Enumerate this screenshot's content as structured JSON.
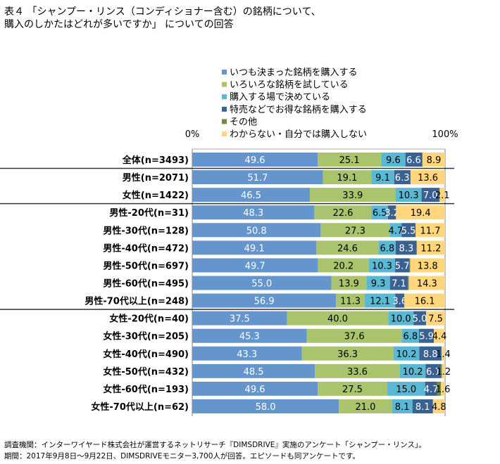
{
  "chart_data": {
    "type": "bar",
    "orientation": "horizontal-stacked-100",
    "title_line1": "表４ 「シャンプー・リンス（コンディショナー含む）の銘柄について、",
    "title_line2": "購入のしかたはどれが多いですか」 についての回答",
    "axis_min_label": "0%",
    "axis_max_label": "100%",
    "xlim": [
      0,
      100
    ],
    "legend_position": "top",
    "series": [
      {
        "name": "いつも決まった銘柄を購入する",
        "color": "#6495cd",
        "text": "#ffffff",
        "values": [
          49.6,
          51.7,
          46.5,
          48.3,
          50.8,
          49.1,
          49.7,
          55.0,
          56.9,
          37.5,
          45.3,
          43.3,
          48.5,
          49.6,
          58.0
        ],
        "labels": [
          "49.6",
          "51.7",
          "46.5",
          "48.3",
          "50.8",
          "49.1",
          "49.7",
          "55.0",
          "56.9",
          "37.5",
          "45.3",
          "43.3",
          "48.5",
          "49.6",
          "58.0"
        ]
      },
      {
        "name": "いろいろな銘柄を試している",
        "color": "#a9c46c",
        "text": "#000000",
        "values": [
          25.1,
          19.1,
          33.9,
          22.6,
          27.3,
          24.6,
          20.2,
          13.9,
          11.3,
          40.0,
          37.6,
          36.3,
          33.6,
          27.5,
          21.0
        ],
        "labels": [
          "25.1",
          "19.1",
          "33.9",
          "22.6",
          "27.3",
          "24.6",
          "20.2",
          "13.9",
          "11.3",
          "40.0",
          "37.6",
          "36.3",
          "33.6",
          "27.5",
          "21.0"
        ]
      },
      {
        "name": "購入する場で決めている",
        "color": "#5ab8d4",
        "text": "#000000",
        "values": [
          9.6,
          9.1,
          10.3,
          6.5,
          4.7,
          6.8,
          10.3,
          9.3,
          12.1,
          10.0,
          6.8,
          10.2,
          10.2,
          15.0,
          8.1
        ],
        "labels": [
          "9.6",
          "9.1",
          "10.3",
          "6.5",
          "4.7",
          "6.8",
          "10.3",
          "9.3",
          "12.1",
          "10.0",
          "6.8",
          "10.2",
          "10.2",
          "15.0",
          "8.1"
        ]
      },
      {
        "name": "特売などでお得な銘柄を購入する",
        "color": "#3b6190",
        "text": "#ffffff",
        "values": [
          6.6,
          6.3,
          7.0,
          3.2,
          5.5,
          8.3,
          5.7,
          7.1,
          3.6,
          5.0,
          5.9,
          8.8,
          6.1,
          4.7,
          8.1
        ],
        "labels": [
          "6.6",
          "6.3",
          "7.0",
          "3.2",
          "5.5",
          "8.3",
          "5.7",
          "7.1",
          "3.6",
          "5.0",
          "5.9",
          "8.8",
          "6.1",
          "4.7",
          "8.1"
        ]
      },
      {
        "name": "その他",
        "color": "#6e8c3c",
        "text": "#ffffff",
        "values": [
          0.2,
          0.2,
          0.2,
          0,
          0,
          0,
          0.3,
          0.4,
          0,
          0,
          0,
          0,
          0.4,
          1.6,
          0
        ],
        "labels": []
      },
      {
        "name": "わからない・自分では購入しない",
        "color": "#ffd67c",
        "text": "#000000",
        "values": [
          8.9,
          13.6,
          2.1,
          19.4,
          11.7,
          11.2,
          13.8,
          14.3,
          16.1,
          7.5,
          4.4,
          1.4,
          1.2,
          1.6,
          4.8
        ],
        "labels": [
          "8.9",
          "13.6",
          "2.1",
          "19.4",
          "11.7",
          "11.2",
          "13.8",
          "14.3",
          "16.1",
          "7.5",
          "4.4",
          "1.4",
          "1.2",
          "1.6",
          "4.8"
        ]
      }
    ],
    "categories": [
      "全体(n=3493)",
      "男性(n=2071)",
      "女性(n=1422)",
      "男性-20代(n=31)",
      "男性-30代(n=128)",
      "男性-40代(n=472)",
      "男性-50代(n=697)",
      "男性-60代(n=495)",
      "男性-70代以上(n=248)",
      "女性-20代(n=40)",
      "女性-30代(n=205)",
      "女性-40代(n=490)",
      "女性-50代(n=432)",
      "女性-60代(n=193)",
      "女性-70代以上(n=62)"
    ],
    "group_separators_after": [
      0,
      2,
      8
    ]
  },
  "footer": {
    "line1": "調査機関：インターワイヤード株式会社が運営するネットリサーチ『DIMSDRIVE』実施のアンケート「シャンプー・リンス」。",
    "line2": "期間：2017年9月8日～9月22日、DIMSDRIVEモニター3,700人が回答。エピソードも同アンケートです。"
  }
}
